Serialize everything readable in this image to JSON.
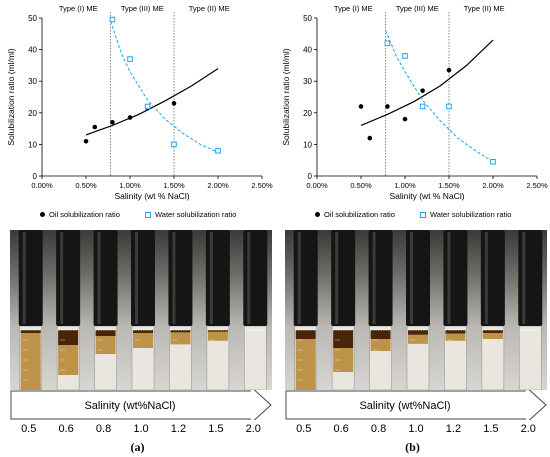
{
  "legend": {
    "oil": "Oil solubilization ratio",
    "water": "Water solubilization ratio"
  },
  "colors": {
    "oil": "#000000",
    "water": "#1aa7e8"
  },
  "chart_data": [
    {
      "type": "scatter",
      "panel": "(a)",
      "xlabel": "Salinity (wt % NaCl)",
      "ylabel": "Solubilization ratio (ml/ml)",
      "x_ticks": [
        "0.00%",
        "0.50%",
        "1.00%",
        "1.50%",
        "2.00%",
        "2.50%"
      ],
      "y_ticks": [
        "0",
        "10",
        "20",
        "30",
        "40",
        "50"
      ],
      "xlim": [
        0,
        2.5
      ],
      "ylim": [
        0,
        50
      ],
      "phase_labels": [
        "Type (I) ME",
        "Type (III) ME",
        "Type (II) ME"
      ],
      "phase_boundaries": [
        0.78,
        1.5
      ],
      "series": [
        {
          "name": "Oil solubilization ratio",
          "x": [
            0.5,
            0.6,
            0.8,
            1.0,
            1.2,
            1.5
          ],
          "y": [
            11,
            15.5,
            17,
            18.5,
            21.5,
            23
          ],
          "trend_x": [
            0.5,
            0.8,
            1.1,
            1.4,
            1.7,
            2.0
          ],
          "trend_y": [
            13,
            16,
            19.5,
            23.8,
            28.5,
            34
          ]
        },
        {
          "name": "Water solubilization ratio",
          "x": [
            0.8,
            1.0,
            1.2,
            1.5,
            2.0
          ],
          "y": [
            49.5,
            37,
            22,
            10,
            8
          ],
          "trend_x": [
            0.78,
            0.9,
            1.0,
            1.2,
            1.4,
            1.6,
            1.8,
            2.0
          ],
          "trend_y": [
            49,
            39,
            33,
            24,
            18,
            13.5,
            10,
            7.5
          ]
        }
      ]
    },
    {
      "type": "scatter",
      "panel": "(b)",
      "xlabel": "Salinity (wt % NaCl)",
      "ylabel": "Solubilization ratio (ml/ml)",
      "x_ticks": [
        "0.00%",
        "0.50%",
        "1.00%",
        "1.50%",
        "2.00%",
        "2.50%"
      ],
      "y_ticks": [
        "0",
        "10",
        "20",
        "30",
        "40",
        "50"
      ],
      "xlim": [
        0,
        2.5
      ],
      "ylim": [
        0,
        50
      ],
      "phase_labels": [
        "Type (I) ME",
        "Type (III) ME",
        "Type (II) ME"
      ],
      "phase_boundaries": [
        0.78,
        1.5
      ],
      "series": [
        {
          "name": "Oil solubilization ratio",
          "x": [
            0.5,
            0.6,
            0.8,
            1.0,
            1.2,
            1.5
          ],
          "y": [
            22,
            12,
            22,
            18,
            27,
            33.5
          ],
          "trend_x": [
            0.5,
            0.8,
            1.1,
            1.4,
            1.7,
            2.0
          ],
          "trend_y": [
            16,
            19.5,
            23.5,
            28.5,
            35,
            43
          ]
        },
        {
          "name": "Water solubilization ratio",
          "x": [
            0.8,
            1.0,
            1.2,
            1.5,
            2.0
          ],
          "y": [
            42,
            38,
            22,
            22,
            4.5
          ],
          "trend_x": [
            0.78,
            0.9,
            1.0,
            1.2,
            1.4,
            1.6,
            1.8,
            2.0
          ],
          "trend_y": [
            46,
            38,
            33,
            24,
            17.5,
            12,
            8,
            4.5
          ]
        }
      ]
    }
  ],
  "photo": {
    "arrow_label": "Salinity (wt%NaCl)",
    "salinity_values": [
      "0.5",
      "0.6",
      "0.8",
      "1.0",
      "1.2",
      "1.5",
      "2.0"
    ],
    "tubes_a": [
      {
        "oil_fraction": 0.95,
        "dark_fraction": 0.05
      },
      {
        "oil_fraction": 0.5,
        "dark_fraction": 0.25
      },
      {
        "oil_fraction": 0.3,
        "dark_fraction": 0.1
      },
      {
        "oil_fraction": 0.25,
        "dark_fraction": 0.05
      },
      {
        "oil_fraction": 0.2,
        "dark_fraction": 0.04
      },
      {
        "oil_fraction": 0.15,
        "dark_fraction": 0.03
      },
      {
        "oil_fraction": 0.0,
        "dark_fraction": 0.0
      }
    ],
    "tubes_b": [
      {
        "oil_fraction": 0.85,
        "dark_fraction": 0.15
      },
      {
        "oil_fraction": 0.4,
        "dark_fraction": 0.3
      },
      {
        "oil_fraction": 0.2,
        "dark_fraction": 0.15
      },
      {
        "oil_fraction": 0.15,
        "dark_fraction": 0.08
      },
      {
        "oil_fraction": 0.12,
        "dark_fraction": 0.06
      },
      {
        "oil_fraction": 0.1,
        "dark_fraction": 0.05
      },
      {
        "oil_fraction": 0.0,
        "dark_fraction": 0.0
      }
    ]
  },
  "captions": [
    "(a)",
    "(b)"
  ]
}
